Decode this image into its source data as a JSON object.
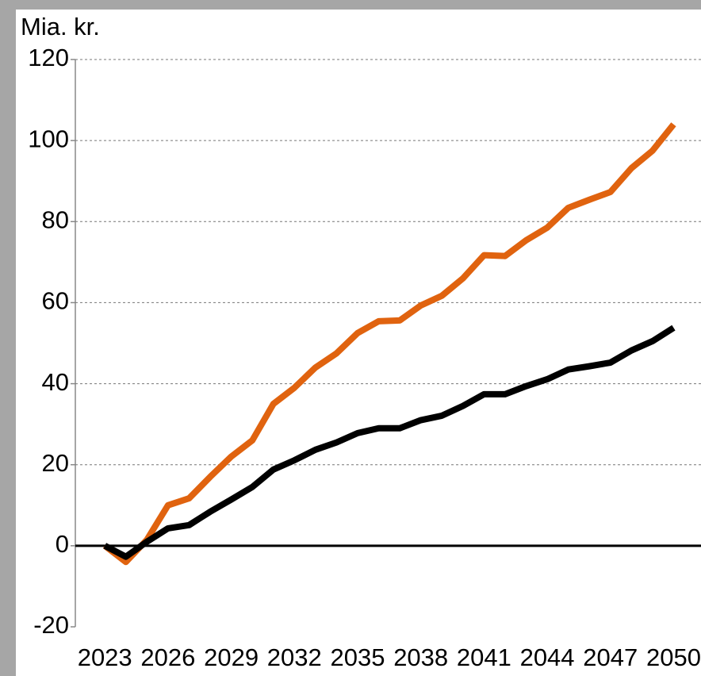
{
  "chart_data": {
    "type": "line",
    "ylabel": "Mia. kr.",
    "x": [
      2023,
      2024,
      2025,
      2026,
      2027,
      2028,
      2029,
      2030,
      2031,
      2032,
      2033,
      2034,
      2035,
      2036,
      2037,
      2038,
      2039,
      2040,
      2041,
      2042,
      2043,
      2044,
      2045,
      2046,
      2047,
      2048,
      2049,
      2050
    ],
    "series": [
      {
        "color": "#e0630f",
        "values": [
          0,
          -4,
          1.5,
          10,
          11.7,
          17,
          22,
          26,
          35,
          39,
          44,
          47.5,
          52.5,
          55.4,
          55.6,
          59.3,
          61.7,
          66,
          71.7,
          71.5,
          75.4,
          78.5,
          83.4,
          85.4,
          87.3,
          93.2,
          97.5,
          104
        ]
      },
      {
        "color": "#000000",
        "values": [
          0,
          -2.7,
          1,
          4.3,
          5.1,
          8.4,
          11.4,
          14.5,
          18.8,
          21.1,
          23.7,
          25.5,
          27.8,
          29,
          29,
          31,
          32.1,
          34.5,
          37.4,
          37.4,
          39.4,
          41.1,
          43.5,
          44.3,
          45.2,
          48.2,
          50.5,
          53.8
        ]
      }
    ],
    "xlim": [
      2021.6,
      2051.3
    ],
    "xticks": [
      2023,
      2026,
      2029,
      2032,
      2035,
      2038,
      2041,
      2044,
      2047,
      2050
    ],
    "ylim": [
      -20,
      120
    ],
    "yticks": [
      -20,
      0,
      20,
      40,
      60,
      80,
      100,
      120
    ],
    "grid": true
  }
}
